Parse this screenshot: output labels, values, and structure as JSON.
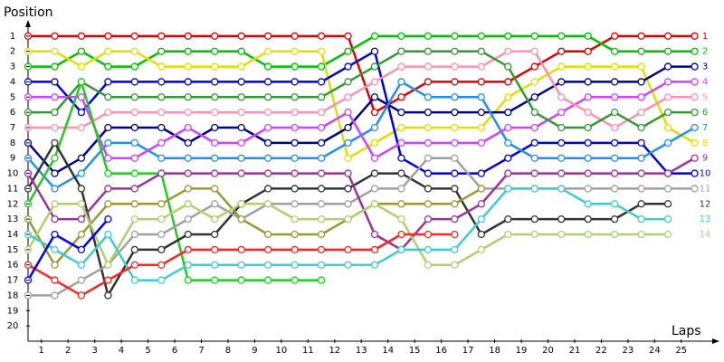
{
  "chart_data": {
    "type": "line",
    "y_label": "Position",
    "x_label": "Laps",
    "x": [
      0,
      1,
      2,
      3,
      4,
      5,
      6,
      7,
      8,
      9,
      10,
      11,
      12,
      13,
      14,
      15,
      16,
      17,
      18,
      19,
      20,
      21,
      22,
      23,
      24,
      25
    ],
    "xlim": [
      0,
      26
    ],
    "xticks": [
      {
        "value": 0.5,
        "label": "1"
      },
      {
        "value": 1.5,
        "label": "2"
      },
      {
        "value": 2.5,
        "label": "3"
      },
      {
        "value": 3.5,
        "label": "4"
      },
      {
        "value": 4.5,
        "label": "5"
      },
      {
        "value": 5.5,
        "label": "6"
      },
      {
        "value": 6.5,
        "label": "7"
      },
      {
        "value": 7.5,
        "label": "8"
      },
      {
        "value": 8.5,
        "label": "9"
      },
      {
        "value": 9.5,
        "label": "10"
      },
      {
        "value": 10.5,
        "label": "11"
      },
      {
        "value": 11.5,
        "label": "12"
      },
      {
        "value": 12.5,
        "label": "13"
      },
      {
        "value": 13.5,
        "label": "14"
      },
      {
        "value": 14.5,
        "label": "15"
      },
      {
        "value": 15.5,
        "label": "16"
      },
      {
        "value": 16.5,
        "label": "17"
      },
      {
        "value": 17.5,
        "label": "18"
      },
      {
        "value": 18.5,
        "label": "19"
      },
      {
        "value": 19.5,
        "label": "20"
      },
      {
        "value": 20.5,
        "label": "21"
      },
      {
        "value": 21.5,
        "label": "22"
      },
      {
        "value": 22.5,
        "label": "23"
      },
      {
        "value": 23.5,
        "label": "24"
      },
      {
        "value": 24.5,
        "label": "25"
      }
    ],
    "ylim": [
      21,
      0
    ],
    "yticks": [
      1,
      2,
      3,
      4,
      5,
      6,
      7,
      8,
      9,
      10,
      11,
      12,
      13,
      14,
      15,
      16,
      17,
      18,
      19,
      20
    ],
    "series": [
      {
        "color": "#e00000",
        "values": [
          1,
          1,
          1,
          1,
          1,
          1,
          1,
          1,
          1,
          1,
          1,
          1,
          1,
          6,
          5,
          4,
          4,
          4,
          4,
          3,
          2,
          2,
          1,
          1,
          1,
          1
        ]
      },
      {
        "color": "#00c000",
        "values": [
          3,
          3,
          2,
          3,
          3,
          2,
          2,
          2,
          2,
          3,
          3,
          3,
          2,
          1,
          1,
          1,
          1,
          1,
          1,
          1,
          1,
          1,
          2,
          2,
          2,
          2
        ]
      },
      {
        "color": "#e0e000",
        "values": [
          2,
          2,
          3,
          2,
          2,
          3,
          3,
          3,
          3,
          2,
          2,
          2,
          9,
          8,
          7,
          7,
          7,
          7,
          5,
          4,
          3,
          3,
          3,
          3,
          7,
          8
        ]
      },
      {
        "color": "#0000e0",
        "values": [
          4,
          4,
          6,
          4,
          4,
          4,
          4,
          4,
          4,
          4,
          4,
          4,
          3,
          2,
          9,
          10,
          10,
          10,
          9,
          8,
          8,
          8,
          8,
          8,
          10,
          10
        ]
      },
      {
        "color": "#000090",
        "values": [
          8,
          10,
          9,
          7,
          7,
          7,
          8,
          7,
          7,
          8,
          8,
          8,
          7,
          5,
          6,
          6,
          6,
          6,
          6,
          5,
          4,
          4,
          4,
          4,
          3,
          3
        ]
      },
      {
        "color": "#2090f0",
        "values": [
          9,
          11,
          10,
          8,
          8,
          9,
          9,
          9,
          9,
          9,
          9,
          9,
          8,
          7,
          4,
          5,
          5,
          5,
          8,
          9,
          9,
          9,
          9,
          9,
          8,
          7
        ]
      },
      {
        "color": "#cc44ff",
        "values": [
          5,
          5,
          5,
          9,
          9,
          8,
          7,
          8,
          8,
          7,
          7,
          7,
          6,
          9,
          8,
          8,
          8,
          8,
          7,
          7,
          6,
          5,
          5,
          5,
          4,
          4
        ]
      },
      {
        "color": "#ff90b0",
        "values": [
          7,
          7,
          7,
          6,
          6,
          6,
          6,
          6,
          6,
          6,
          6,
          6,
          5,
          4,
          3,
          3,
          3,
          3,
          2,
          2,
          5,
          6,
          7,
          6,
          5,
          5
        ]
      },
      {
        "color": "#339933",
        "values": [
          6,
          6,
          4,
          5,
          5,
          5,
          5,
          5,
          5,
          5,
          5,
          5,
          4,
          3,
          2,
          2,
          2,
          2,
          3,
          6,
          7,
          7,
          6,
          7,
          6,
          6
        ]
      },
      {
        "color": "#22cc22",
        "values": [
          12,
          9,
          4,
          10,
          10,
          10,
          17,
          17,
          17,
          17,
          17,
          17,
          null,
          null,
          null,
          null,
          null,
          null,
          null,
          null,
          null,
          null,
          null,
          null,
          null,
          null
        ]
      },
      {
        "color": "#333333",
        "values": [
          11,
          8,
          11,
          18,
          15,
          15,
          14,
          14,
          12,
          11,
          11,
          11,
          11,
          10,
          10,
          11,
          11,
          14,
          13,
          13,
          13,
          13,
          13,
          12,
          12,
          null
        ]
      },
      {
        "color": "#a0a0a0",
        "values": [
          18,
          18,
          17,
          16,
          14,
          14,
          13,
          12,
          13,
          12,
          12,
          12,
          12,
          11,
          11,
          9,
          9,
          11,
          11,
          11,
          11,
          11,
          11,
          11,
          11,
          11
        ]
      },
      {
        "color": "#993399",
        "values": [
          10,
          13,
          13,
          11,
          11,
          10,
          10,
          10,
          10,
          10,
          10,
          10,
          10,
          14,
          15,
          13,
          13,
          12,
          10,
          10,
          10,
          10,
          10,
          10,
          10,
          9
        ]
      },
      {
        "color": "#999933",
        "values": [
          13,
          16,
          14,
          12,
          12,
          12,
          11,
          11,
          13,
          14,
          14,
          14,
          13,
          12,
          12,
          12,
          12,
          11,
          null,
          null,
          null,
          null,
          null,
          null,
          null,
          null
        ]
      },
      {
        "color": "#b0d070",
        "values": [
          15,
          12,
          12,
          16,
          13,
          13,
          12,
          13,
          12,
          12,
          13,
          13,
          13,
          12,
          13,
          16,
          16,
          15,
          14,
          14,
          14,
          14,
          14,
          14,
          14,
          null
        ]
      },
      {
        "color": "#40cccc",
        "values": [
          14,
          15,
          16,
          14,
          17,
          17,
          16,
          16,
          16,
          16,
          16,
          16,
          16,
          16,
          15,
          15,
          15,
          13,
          11,
          11,
          11,
          12,
          12,
          13,
          13,
          null
        ]
      },
      {
        "color": "#ff2222",
        "values": [
          16,
          17,
          18,
          17,
          16,
          16,
          15,
          15,
          15,
          15,
          15,
          15,
          15,
          15,
          14,
          14,
          14,
          null,
          null,
          null,
          null,
          null,
          null,
          null,
          null,
          null
        ]
      },
      {
        "color": "#0000ff",
        "values": [
          17,
          14,
          15,
          13,
          null,
          null,
          null,
          null,
          null,
          null,
          null,
          null,
          null,
          null,
          null,
          null,
          null,
          null,
          null,
          null,
          null,
          null,
          null,
          null,
          null,
          null
        ]
      }
    ]
  }
}
